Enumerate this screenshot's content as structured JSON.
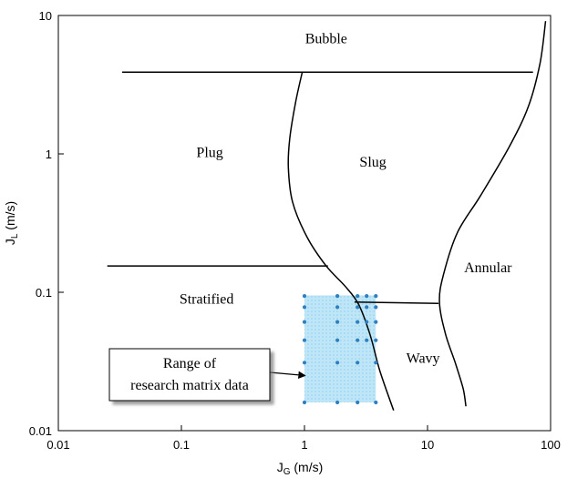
{
  "chart_data": {
    "type": "scatter",
    "title": "",
    "xlabel": {
      "base": "J",
      "sub": "G",
      "unit": " (m/s)"
    },
    "ylabel": {
      "base": "J",
      "sub": "L",
      "unit": " (m/s)"
    },
    "xscale": "log",
    "yscale": "log",
    "xlim": [
      0.01,
      100
    ],
    "ylim": [
      0.01,
      10
    ],
    "x_ticks": [
      {
        "value": 0.01,
        "label": "0.01"
      },
      {
        "value": 0.1,
        "label": "0.1"
      },
      {
        "value": 1,
        "label": "1"
      },
      {
        "value": 10,
        "label": "10"
      },
      {
        "value": 100,
        "label": "100"
      }
    ],
    "y_ticks": [
      {
        "value": 0.01,
        "label": "0.01"
      },
      {
        "value": 0.1,
        "label": "0.1"
      },
      {
        "value": 1,
        "label": "1"
      },
      {
        "value": 10,
        "label": "10"
      }
    ],
    "grid": false,
    "regions": [
      {
        "label": "Bubble",
        "x": 1.5,
        "y": 6.3
      },
      {
        "label": "Plug",
        "x": 0.17,
        "y": 0.95
      },
      {
        "label": "Slug",
        "x": 3.6,
        "y": 0.81
      },
      {
        "label": "Annular",
        "x": 31,
        "y": 0.14
      },
      {
        "label": "Stratified",
        "x": 0.16,
        "y": 0.083
      },
      {
        "label": "Wavy",
        "x": 9.2,
        "y": 0.031
      }
    ],
    "boundaries": [
      {
        "name": "bubble-boundary",
        "points": [
          [
            0.033,
            3.9
          ],
          [
            72,
            3.9
          ]
        ]
      },
      {
        "name": "plug-slug-boundary",
        "points": [
          [
            0.96,
            3.9
          ],
          [
            0.85,
            2.4
          ],
          [
            0.76,
            1.3
          ],
          [
            0.74,
            0.8
          ],
          [
            0.8,
            0.45
          ],
          [
            1.05,
            0.25
          ],
          [
            1.5,
            0.155
          ],
          [
            2.15,
            0.11
          ],
          [
            2.75,
            0.082
          ],
          [
            3.4,
            0.05
          ],
          [
            4.1,
            0.027
          ],
          [
            5.3,
            0.014
          ]
        ]
      },
      {
        "name": "stratified-boundary",
        "points": [
          [
            0.025,
            0.155
          ],
          [
            1.55,
            0.155
          ]
        ]
      },
      {
        "name": "wavy-boundary",
        "points": [
          [
            2.55,
            0.085
          ],
          [
            12.3,
            0.083
          ]
        ]
      },
      {
        "name": "slug-annular-boundary",
        "points": [
          [
            91,
            9.1
          ],
          [
            82,
            4.5
          ],
          [
            66,
            2.2
          ],
          [
            46,
            1.12
          ],
          [
            27,
            0.5
          ],
          [
            17.5,
            0.27
          ],
          [
            13.5,
            0.135
          ],
          [
            12.5,
            0.085
          ],
          [
            14,
            0.05
          ],
          [
            17,
            0.03
          ],
          [
            19.5,
            0.02
          ],
          [
            20.5,
            0.015
          ]
        ]
      }
    ],
    "research_range": {
      "x": [
        1.0,
        3.8
      ],
      "y": [
        0.016,
        0.095
      ],
      "fill": "#bfe6f7",
      "point_color": "#2e7fbf"
    },
    "series": [
      {
        "points": [
          [
            1.0,
            0.094
          ],
          [
            1.0,
            0.078
          ],
          [
            1.0,
            0.061
          ],
          [
            1.0,
            0.045
          ],
          [
            1.0,
            0.031
          ],
          [
            1.0,
            0.016
          ],
          [
            1.85,
            0.094
          ],
          [
            1.85,
            0.078
          ],
          [
            1.85,
            0.061
          ],
          [
            1.85,
            0.045
          ],
          [
            1.85,
            0.031
          ],
          [
            1.85,
            0.016
          ],
          [
            2.7,
            0.094
          ],
          [
            2.7,
            0.078
          ],
          [
            2.7,
            0.061
          ],
          [
            2.7,
            0.045
          ],
          [
            2.7,
            0.031
          ],
          [
            2.7,
            0.016
          ],
          [
            3.2,
            0.094
          ],
          [
            3.2,
            0.078
          ],
          [
            3.2,
            0.061
          ],
          [
            3.2,
            0.045
          ],
          [
            3.8,
            0.094
          ],
          [
            3.8,
            0.078
          ],
          [
            3.8,
            0.061
          ],
          [
            3.8,
            0.045
          ],
          [
            3.8,
            0.031
          ],
          [
            3.8,
            0.016
          ]
        ]
      }
    ],
    "callout": {
      "lines": [
        "Range of",
        "research matrix data"
      ],
      "target": [
        1.05,
        0.025
      ]
    }
  }
}
